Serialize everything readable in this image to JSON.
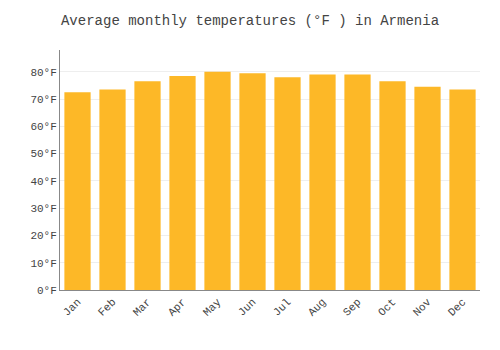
{
  "chart_data": {
    "type": "bar",
    "title": "Average monthly temperatures (°F ) in Armenia",
    "categories": [
      "Jan",
      "Feb",
      "Mar",
      "Apr",
      "May",
      "Jun",
      "Jul",
      "Aug",
      "Sep",
      "Oct",
      "Nov",
      "Dec"
    ],
    "values": [
      72.5,
      73.5,
      76.5,
      78.5,
      80.0,
      79.5,
      78.0,
      79.0,
      79.0,
      76.5,
      74.5,
      73.5
    ],
    "color": "#FDB827",
    "ylim": [
      0,
      88
    ],
    "yticks": [
      {
        "value": 0,
        "label": "0°F"
      },
      {
        "value": 10,
        "label": "10°F"
      },
      {
        "value": 20,
        "label": "20°F"
      },
      {
        "value": 30,
        "label": "30°F"
      },
      {
        "value": 40,
        "label": "40°F"
      },
      {
        "value": 50,
        "label": "50°F"
      },
      {
        "value": 60,
        "label": "60°F"
      },
      {
        "value": 70,
        "label": "70°F"
      },
      {
        "value": 80,
        "label": "80°F"
      }
    ],
    "grid": true
  }
}
